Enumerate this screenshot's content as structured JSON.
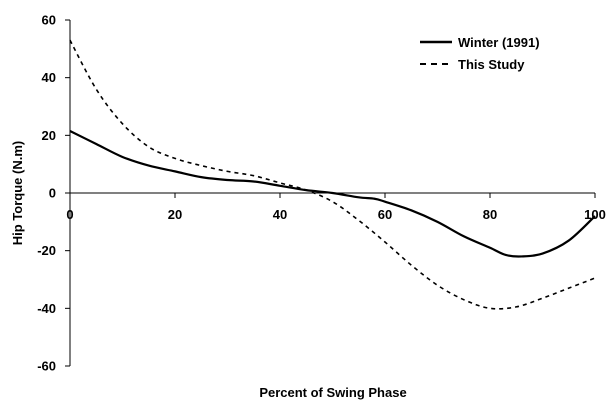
{
  "chart_data": {
    "type": "line",
    "title": "",
    "xlabel": "Percent of Swing Phase",
    "ylabel": "Hip Torque (N.m)",
    "xlim": [
      0,
      100
    ],
    "ylim": [
      -60,
      60
    ],
    "x_ticks": [
      0,
      20,
      40,
      60,
      80,
      100
    ],
    "y_ticks": [
      60,
      40,
      20,
      0,
      -20,
      -40,
      -60
    ],
    "grid": false,
    "legend_position": "top-right",
    "series": [
      {
        "name": "Winter (1991)",
        "style": "solid",
        "color": "#000000",
        "x": [
          0,
          5,
          10,
          15,
          20,
          25,
          30,
          35,
          40,
          45,
          50,
          55,
          58,
          60,
          65,
          70,
          75,
          80,
          83,
          86,
          90,
          95,
          100
        ],
        "y": [
          21.5,
          17,
          12.5,
          9.5,
          7.5,
          5.5,
          4.5,
          4,
          2.5,
          1,
          0,
          -1.5,
          -2,
          -3,
          -6,
          -10,
          -15,
          -19,
          -21.5,
          -22,
          -21,
          -16.5,
          -8
        ]
      },
      {
        "name": "This Study",
        "style": "dashed",
        "color": "#000000",
        "x": [
          0,
          5,
          10,
          15,
          20,
          25,
          30,
          35,
          40,
          45,
          50,
          55,
          60,
          65,
          70,
          75,
          80,
          85,
          90,
          95,
          100
        ],
        "y": [
          53,
          36,
          24,
          16,
          12,
          9.5,
          7.5,
          6,
          3.5,
          1,
          -3,
          -9.5,
          -17,
          -25,
          -32,
          -37,
          -40,
          -39.5,
          -36.5,
          -33,
          -29.5
        ]
      }
    ]
  }
}
